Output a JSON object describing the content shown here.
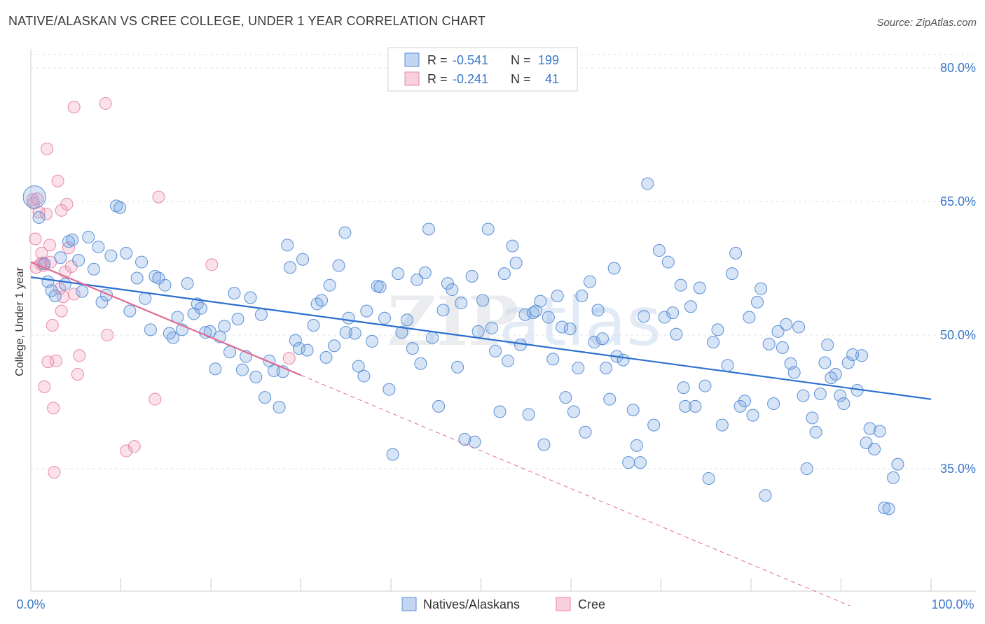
{
  "header": {
    "title": "NATIVE/ALASKAN VS CREE COLLEGE, UNDER 1 YEAR CORRELATION CHART",
    "source": "Source: ZipAtlas.com"
  },
  "colors": {
    "blue": "#5b8fd6",
    "blue_fill": "rgba(120,165,225,0.30)",
    "blue_line": "#2b6fcf",
    "pink": "#e889a8",
    "pink_fill": "rgba(240,150,180,0.28)",
    "pink_line": "#e06a94",
    "grid": "#dde3ea",
    "tick_text": "#3a78c9"
  },
  "legend": {
    "rows": [
      {
        "r_label": "R =",
        "r_value": "-0.541",
        "n_label": "N =",
        "n_value": "199"
      },
      {
        "r_label": "R =",
        "r_value": "-0.241",
        "n_label": "N =",
        "n_value": "41"
      }
    ]
  },
  "watermark": {
    "part1": "ZIP",
    "part2": "atlas"
  },
  "chart_data": {
    "type": "scatter",
    "title": "NATIVE/ALASKAN VS CREE COLLEGE, UNDER 1 YEAR CORRELATION CHART",
    "xlabel": "",
    "ylabel": "College, Under 1 year",
    "xlim": [
      0,
      100
    ],
    "ylim": [
      20,
      85
    ],
    "x_tick_labels": [
      "0.0%",
      "100.0%"
    ],
    "y_ticks": [
      35,
      50,
      65,
      80
    ],
    "y_tick_labels": [
      "35.0%",
      "50.0%",
      "65.0%",
      "80.0%"
    ],
    "grid": true,
    "legend_position": "top-center",
    "series": [
      {
        "name": "Natives/Alaskans",
        "trend": {
          "x": [
            0,
            100
          ],
          "y": [
            56.5,
            42.8
          ]
        },
        "points": [
          [
            0.4,
            65.5
          ],
          [
            0.9,
            63.2
          ],
          [
            1.5,
            58.0
          ],
          [
            1.9,
            56.0
          ],
          [
            2.3,
            55.0
          ],
          [
            2.7,
            54.4
          ],
          [
            3.3,
            58.7
          ],
          [
            3.8,
            55.7
          ],
          [
            4.2,
            60.5
          ],
          [
            4.6,
            60.7
          ],
          [
            5.3,
            58.4
          ],
          [
            5.7,
            54.9
          ],
          [
            6.4,
            61.0
          ],
          [
            7.0,
            57.4
          ],
          [
            7.5,
            59.9
          ],
          [
            7.9,
            53.7
          ],
          [
            8.4,
            54.5
          ],
          [
            8.9,
            58.9
          ],
          [
            9.5,
            64.5
          ],
          [
            9.9,
            64.3
          ],
          [
            10.6,
            59.2
          ],
          [
            11.0,
            52.7
          ],
          [
            11.8,
            56.4
          ],
          [
            12.3,
            58.2
          ],
          [
            12.7,
            54.1
          ],
          [
            13.3,
            50.6
          ],
          [
            13.8,
            56.6
          ],
          [
            14.2,
            56.4
          ],
          [
            14.9,
            55.6
          ],
          [
            15.4,
            50.2
          ],
          [
            15.8,
            49.7
          ],
          [
            16.3,
            52.0
          ],
          [
            16.8,
            50.6
          ],
          [
            17.4,
            55.8
          ],
          [
            18.1,
            52.4
          ],
          [
            18.5,
            53.5
          ],
          [
            18.9,
            53.0
          ],
          [
            19.4,
            50.3
          ],
          [
            19.9,
            50.4
          ],
          [
            20.5,
            46.2
          ],
          [
            21.0,
            49.8
          ],
          [
            21.5,
            51.0
          ],
          [
            22.1,
            48.1
          ],
          [
            22.6,
            54.7
          ],
          [
            23.0,
            51.8
          ],
          [
            23.5,
            46.1
          ],
          [
            23.9,
            47.6
          ],
          [
            24.4,
            54.2
          ],
          [
            25.0,
            45.3
          ],
          [
            25.6,
            52.3
          ],
          [
            26.0,
            43.0
          ],
          [
            26.5,
            47.1
          ],
          [
            27.0,
            46.0
          ],
          [
            27.6,
            41.9
          ],
          [
            28.0,
            45.9
          ],
          [
            28.5,
            60.1
          ],
          [
            28.8,
            57.6
          ],
          [
            29.4,
            49.4
          ],
          [
            29.8,
            48.5
          ],
          [
            30.2,
            58.5
          ],
          [
            30.7,
            48.3
          ],
          [
            31.4,
            51.1
          ],
          [
            31.8,
            53.5
          ],
          [
            32.3,
            53.9
          ],
          [
            32.8,
            47.5
          ],
          [
            33.2,
            55.6
          ],
          [
            33.7,
            48.8
          ],
          [
            34.2,
            57.8
          ],
          [
            34.9,
            61.5
          ],
          [
            35.3,
            51.9
          ],
          [
            36.0,
            50.2
          ],
          [
            36.4,
            46.5
          ],
          [
            37.0,
            45.4
          ],
          [
            37.3,
            52.7
          ],
          [
            37.9,
            49.3
          ],
          [
            38.5,
            55.5
          ],
          [
            38.8,
            55.4
          ],
          [
            39.3,
            51.9
          ],
          [
            39.8,
            43.9
          ],
          [
            40.2,
            36.6
          ],
          [
            40.8,
            56.9
          ],
          [
            41.2,
            50.3
          ],
          [
            41.8,
            51.7
          ],
          [
            42.4,
            48.5
          ],
          [
            42.9,
            56.2
          ],
          [
            43.3,
            46.8
          ],
          [
            43.8,
            57.0
          ],
          [
            44.2,
            61.9
          ],
          [
            44.6,
            49.7
          ],
          [
            45.3,
            42.0
          ],
          [
            45.8,
            52.8
          ],
          [
            46.3,
            55.8
          ],
          [
            46.8,
            55.1
          ],
          [
            47.4,
            46.4
          ],
          [
            47.8,
            53.6
          ],
          [
            48.2,
            38.3
          ],
          [
            49.0,
            56.6
          ],
          [
            49.3,
            38.0
          ],
          [
            49.7,
            50.4
          ],
          [
            50.2,
            53.9
          ],
          [
            50.8,
            61.9
          ],
          [
            51.2,
            50.8
          ],
          [
            51.6,
            48.2
          ],
          [
            52.1,
            41.4
          ],
          [
            52.6,
            56.9
          ],
          [
            53.0,
            47.1
          ],
          [
            53.5,
            60.0
          ],
          [
            53.9,
            58.1
          ],
          [
            54.4,
            48.9
          ],
          [
            54.9,
            52.3
          ],
          [
            55.3,
            41.1
          ],
          [
            55.8,
            52.5
          ],
          [
            56.1,
            52.7
          ],
          [
            56.6,
            53.8
          ],
          [
            57.0,
            37.7
          ],
          [
            57.5,
            52.0
          ],
          [
            58.0,
            47.3
          ],
          [
            58.5,
            54.4
          ],
          [
            59.0,
            50.9
          ],
          [
            59.4,
            43.0
          ],
          [
            59.9,
            50.7
          ],
          [
            60.3,
            41.4
          ],
          [
            60.8,
            46.3
          ],
          [
            61.2,
            54.4
          ],
          [
            61.6,
            39.1
          ],
          [
            62.1,
            56.0
          ],
          [
            62.6,
            49.2
          ],
          [
            63.0,
            52.8
          ],
          [
            63.5,
            49.6
          ],
          [
            63.9,
            46.3
          ],
          [
            64.3,
            42.8
          ],
          [
            64.8,
            57.5
          ],
          [
            65.1,
            47.6
          ],
          [
            65.8,
            47.2
          ],
          [
            66.4,
            35.7
          ],
          [
            66.9,
            41.6
          ],
          [
            67.3,
            37.6
          ],
          [
            67.7,
            35.7
          ],
          [
            68.1,
            52.1
          ],
          [
            68.5,
            67.0
          ],
          [
            69.2,
            39.9
          ],
          [
            69.8,
            59.5
          ],
          [
            70.4,
            52.0
          ],
          [
            70.8,
            58.2
          ],
          [
            71.3,
            52.5
          ],
          [
            71.7,
            50.1
          ],
          [
            72.2,
            55.6
          ],
          [
            72.7,
            42.0
          ],
          [
            73.3,
            53.2
          ],
          [
            73.8,
            42.0
          ],
          [
            74.3,
            55.3
          ],
          [
            74.9,
            44.3
          ],
          [
            75.3,
            33.9
          ],
          [
            75.8,
            49.2
          ],
          [
            76.3,
            50.6
          ],
          [
            76.8,
            39.9
          ],
          [
            77.4,
            46.6
          ],
          [
            77.9,
            56.9
          ],
          [
            78.3,
            59.2
          ],
          [
            78.8,
            42.0
          ],
          [
            79.3,
            42.6
          ],
          [
            79.8,
            52.0
          ],
          [
            80.2,
            41.0
          ],
          [
            80.7,
            53.7
          ],
          [
            81.1,
            55.2
          ],
          [
            81.6,
            32.0
          ],
          [
            82.0,
            49.0
          ],
          [
            82.5,
            42.3
          ],
          [
            83.0,
            50.4
          ],
          [
            83.5,
            48.6
          ],
          [
            83.9,
            51.2
          ],
          [
            84.4,
            46.8
          ],
          [
            84.8,
            45.8
          ],
          [
            85.3,
            50.9
          ],
          [
            85.8,
            43.2
          ],
          [
            86.2,
            35.0
          ],
          [
            86.8,
            40.7
          ],
          [
            87.2,
            39.1
          ],
          [
            87.7,
            43.4
          ],
          [
            88.2,
            46.9
          ],
          [
            88.5,
            48.9
          ],
          [
            88.9,
            45.2
          ],
          [
            89.4,
            45.6
          ],
          [
            89.9,
            43.2
          ],
          [
            90.3,
            42.3
          ],
          [
            90.8,
            46.9
          ],
          [
            91.3,
            47.8
          ],
          [
            91.8,
            43.8
          ],
          [
            92.3,
            47.7
          ],
          [
            92.8,
            37.9
          ],
          [
            93.2,
            39.5
          ],
          [
            93.7,
            37.2
          ],
          [
            94.3,
            39.2
          ],
          [
            94.8,
            30.6
          ],
          [
            95.3,
            30.5
          ],
          [
            95.8,
            34.0
          ],
          [
            96.3,
            35.5
          ],
          [
            72.5,
            44.1
          ],
          [
            35.0,
            50.3
          ]
        ]
      },
      {
        "name": "Cree",
        "trend": {
          "x": [
            0,
            30
          ],
          "y": [
            58.2,
            45.5
          ]
        },
        "trend_dashed": {
          "x": [
            30,
            91
          ],
          "y": [
            45.5,
            19.6
          ]
        },
        "points": [
          [
            0.2,
            65.2
          ],
          [
            0.3,
            64.8
          ],
          [
            0.5,
            60.8
          ],
          [
            0.6,
            57.6
          ],
          [
            0.9,
            63.8
          ],
          [
            1.2,
            59.2
          ],
          [
            1.3,
            58.1
          ],
          [
            1.4,
            57.8
          ],
          [
            1.5,
            44.2
          ],
          [
            1.7,
            63.6
          ],
          [
            1.8,
            70.9
          ],
          [
            1.9,
            47.0
          ],
          [
            2.2,
            58.2
          ],
          [
            2.4,
            51.1
          ],
          [
            2.5,
            41.8
          ],
          [
            2.6,
            34.6
          ],
          [
            2.8,
            47.1
          ],
          [
            3.0,
            67.3
          ],
          [
            3.2,
            55.2
          ],
          [
            3.4,
            52.7
          ],
          [
            3.4,
            64.0
          ],
          [
            3.6,
            54.3
          ],
          [
            3.8,
            57.1
          ],
          [
            4.0,
            64.7
          ],
          [
            4.2,
            59.8
          ],
          [
            4.5,
            57.7
          ],
          [
            4.8,
            54.6
          ],
          [
            5.2,
            45.6
          ],
          [
            5.4,
            47.7
          ],
          [
            4.8,
            75.6
          ],
          [
            8.3,
            76.0
          ],
          [
            8.5,
            50.0
          ],
          [
            10.6,
            37.0
          ],
          [
            11.5,
            37.5
          ],
          [
            13.8,
            42.8
          ],
          [
            14.2,
            65.5
          ],
          [
            20.1,
            57.9
          ],
          [
            28.7,
            47.4
          ],
          [
            1.1,
            58.0
          ],
          [
            2.1,
            60.1
          ],
          [
            0.7,
            65.3
          ]
        ]
      }
    ]
  },
  "bottom_legend": {
    "items": [
      {
        "label": "Natives/Alaskans"
      },
      {
        "label": "Cree"
      }
    ]
  }
}
